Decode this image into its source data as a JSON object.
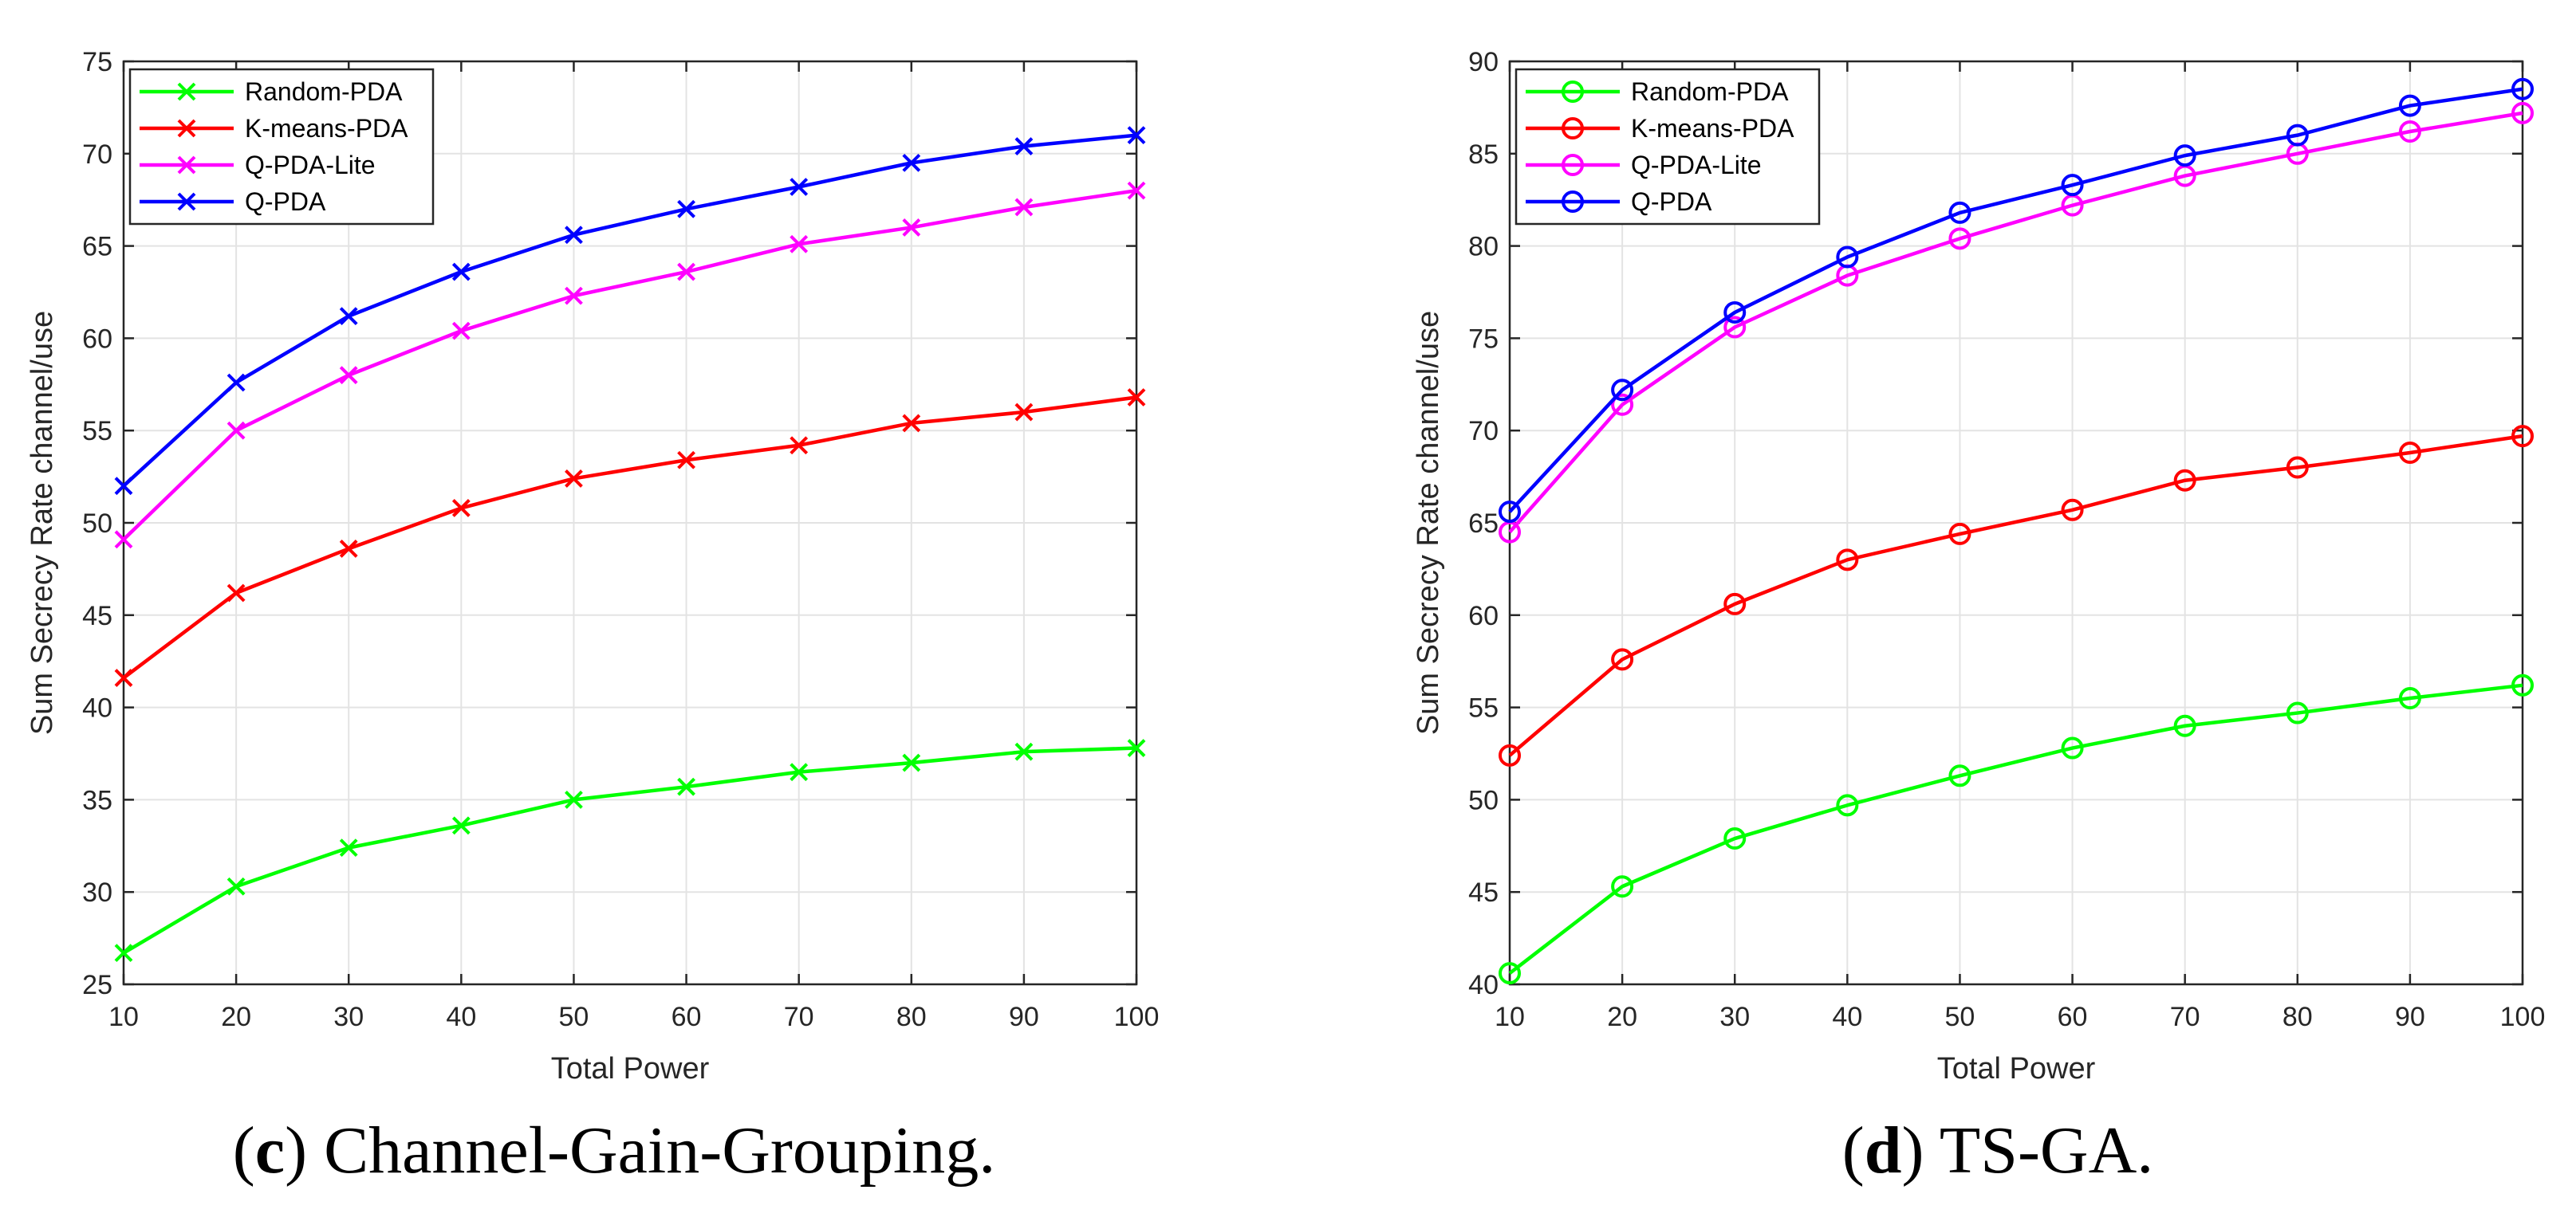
{
  "chart_data": [
    {
      "id": "c",
      "type": "line",
      "marker": "x",
      "title": "",
      "xlabel": "Total Power",
      "ylabel": "Sum Secrecy Rate channel/use",
      "xlim": [
        10,
        100
      ],
      "ylim": [
        25,
        75
      ],
      "xticks": [
        10,
        20,
        30,
        40,
        50,
        60,
        70,
        80,
        90,
        100
      ],
      "yticks": [
        25,
        30,
        35,
        40,
        45,
        50,
        55,
        60,
        65,
        70,
        75
      ],
      "grid": true,
      "legend_position": "top-left",
      "x": [
        10,
        20,
        30,
        40,
        50,
        60,
        70,
        80,
        90,
        100
      ],
      "series": [
        {
          "name": "Random-PDA",
          "color": "#00ff00",
          "values": [
            26.7,
            30.3,
            32.4,
            33.6,
            35.0,
            35.7,
            36.5,
            37.0,
            37.6,
            37.8
          ]
        },
        {
          "name": "K-means-PDA",
          "color": "#ff0000",
          "values": [
            41.6,
            46.2,
            48.6,
            50.8,
            52.4,
            53.4,
            54.2,
            55.4,
            56.0,
            56.8
          ]
        },
        {
          "name": "Q-PDA-Lite",
          "color": "#ff00ff",
          "values": [
            49.1,
            55.0,
            58.0,
            60.4,
            62.3,
            63.6,
            65.1,
            66.0,
            67.1,
            68.0
          ]
        },
        {
          "name": "Q-PDA",
          "color": "#0000ff",
          "values": [
            52.0,
            57.6,
            61.2,
            63.6,
            65.6,
            67.0,
            68.2,
            69.5,
            70.4,
            71.0
          ]
        }
      ]
    },
    {
      "id": "d",
      "type": "line",
      "marker": "o",
      "title": "",
      "xlabel": "Total Power",
      "ylabel": "Sum Secrecy Rate channel/use",
      "xlim": [
        10,
        100
      ],
      "ylim": [
        40,
        90
      ],
      "xticks": [
        10,
        20,
        30,
        40,
        50,
        60,
        70,
        80,
        90,
        100
      ],
      "yticks": [
        40,
        45,
        50,
        55,
        60,
        65,
        70,
        75,
        80,
        85,
        90
      ],
      "grid": true,
      "legend_position": "top-left",
      "x": [
        10,
        20,
        30,
        40,
        50,
        60,
        70,
        80,
        90,
        100
      ],
      "series": [
        {
          "name": "Random-PDA",
          "color": "#00ff00",
          "values": [
            40.6,
            45.3,
            47.9,
            49.7,
            51.3,
            52.8,
            54.0,
            54.7,
            55.5,
            56.2
          ]
        },
        {
          "name": "K-means-PDA",
          "color": "#ff0000",
          "values": [
            52.4,
            57.6,
            60.6,
            63.0,
            64.4,
            65.7,
            67.3,
            68.0,
            68.8,
            69.7
          ]
        },
        {
          "name": "Q-PDA-Lite",
          "color": "#ff00ff",
          "values": [
            64.5,
            71.4,
            75.6,
            78.4,
            80.4,
            82.2,
            83.8,
            85.0,
            86.2,
            87.2
          ]
        },
        {
          "name": "Q-PDA",
          "color": "#0000ff",
          "values": [
            65.6,
            72.2,
            76.4,
            79.4,
            81.8,
            83.3,
            84.9,
            86.0,
            87.6,
            88.5
          ]
        }
      ]
    }
  ],
  "captions": {
    "c": {
      "letter": "c",
      "text": "Channel-Gain-Grouping."
    },
    "d": {
      "letter": "d",
      "text": "TS-GA."
    }
  }
}
